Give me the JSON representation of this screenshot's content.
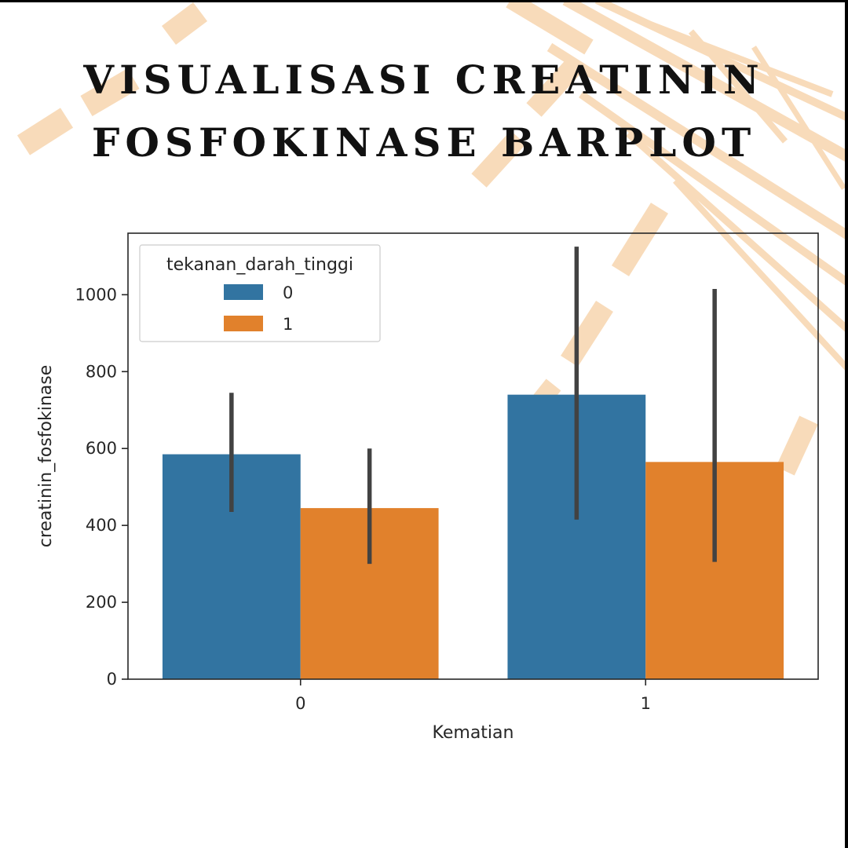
{
  "title": {
    "line1": "VISUALISASI CREATININ",
    "line2": "FOSFOKINASE BARPLOT"
  },
  "colors": {
    "series0": "#3274a1",
    "series1": "#e1812c",
    "errorbar": "#424242",
    "decor": "#f8dbba"
  },
  "chart_data": {
    "type": "bar",
    "categories": [
      "0",
      "1"
    ],
    "xlabel": "Kematian",
    "ylabel": "creatinin_fosfokinase",
    "ylim": [
      0,
      1160
    ],
    "yticks": [
      0,
      200,
      400,
      600,
      800,
      1000
    ],
    "grid": false,
    "legend": {
      "title": "tekanan_darah_tinggi",
      "placement": "top-left"
    },
    "series": [
      {
        "name": "0",
        "values": [
          585,
          740
        ],
        "ci_low": [
          435,
          415
        ],
        "ci_high": [
          745,
          1125
        ]
      },
      {
        "name": "1",
        "values": [
          445,
          565
        ],
        "ci_low": [
          300,
          305
        ],
        "ci_high": [
          600,
          1015
        ]
      }
    ]
  }
}
